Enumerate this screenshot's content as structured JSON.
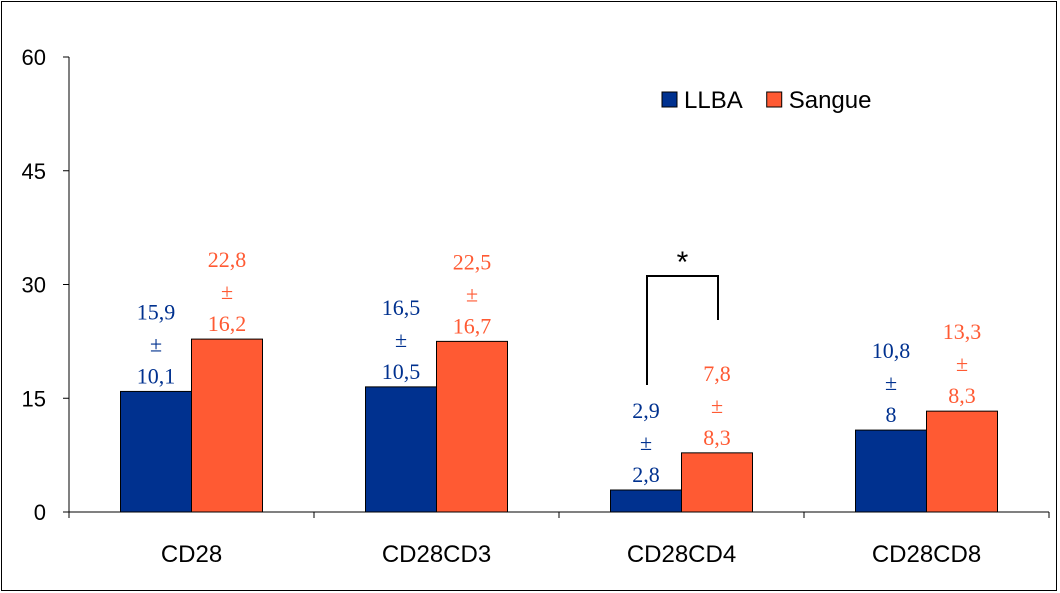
{
  "chart_data": {
    "type": "bar",
    "categories": [
      "CD28",
      "CD28CD3",
      "CD28CD4",
      "CD28CD8"
    ],
    "series": [
      {
        "name": "LLBA",
        "color": "#00318f",
        "values": [
          15.9,
          16.5,
          2.9,
          10.8
        ],
        "sd": [
          10.1,
          10.5,
          2.8,
          8
        ],
        "labels": [
          [
            "15,9",
            "±",
            "10,1"
          ],
          [
            "16,5",
            "±",
            "10,5"
          ],
          [
            "2,9",
            "±",
            "2,8"
          ],
          [
            "10,8",
            "±",
            "8"
          ]
        ]
      },
      {
        "name": "Sangue",
        "color": "#ff5a33",
        "values": [
          22.8,
          22.5,
          7.8,
          13.3
        ],
        "sd": [
          16.2,
          16.7,
          8.3,
          8.3
        ],
        "labels": [
          [
            "22,8",
            "±",
            "16,2"
          ],
          [
            "22,5",
            "±",
            "16,7"
          ],
          [
            "7,8",
            "±",
            "8,3"
          ],
          [
            "13,3",
            "±",
            "8,3"
          ]
        ]
      }
    ],
    "ylim": [
      0,
      60
    ],
    "yticks": [
      "0",
      "15",
      "30",
      "45",
      "60"
    ],
    "legend_position": "top-right",
    "grid": false,
    "significance": {
      "category": "CD28CD4",
      "marker": "*"
    }
  }
}
